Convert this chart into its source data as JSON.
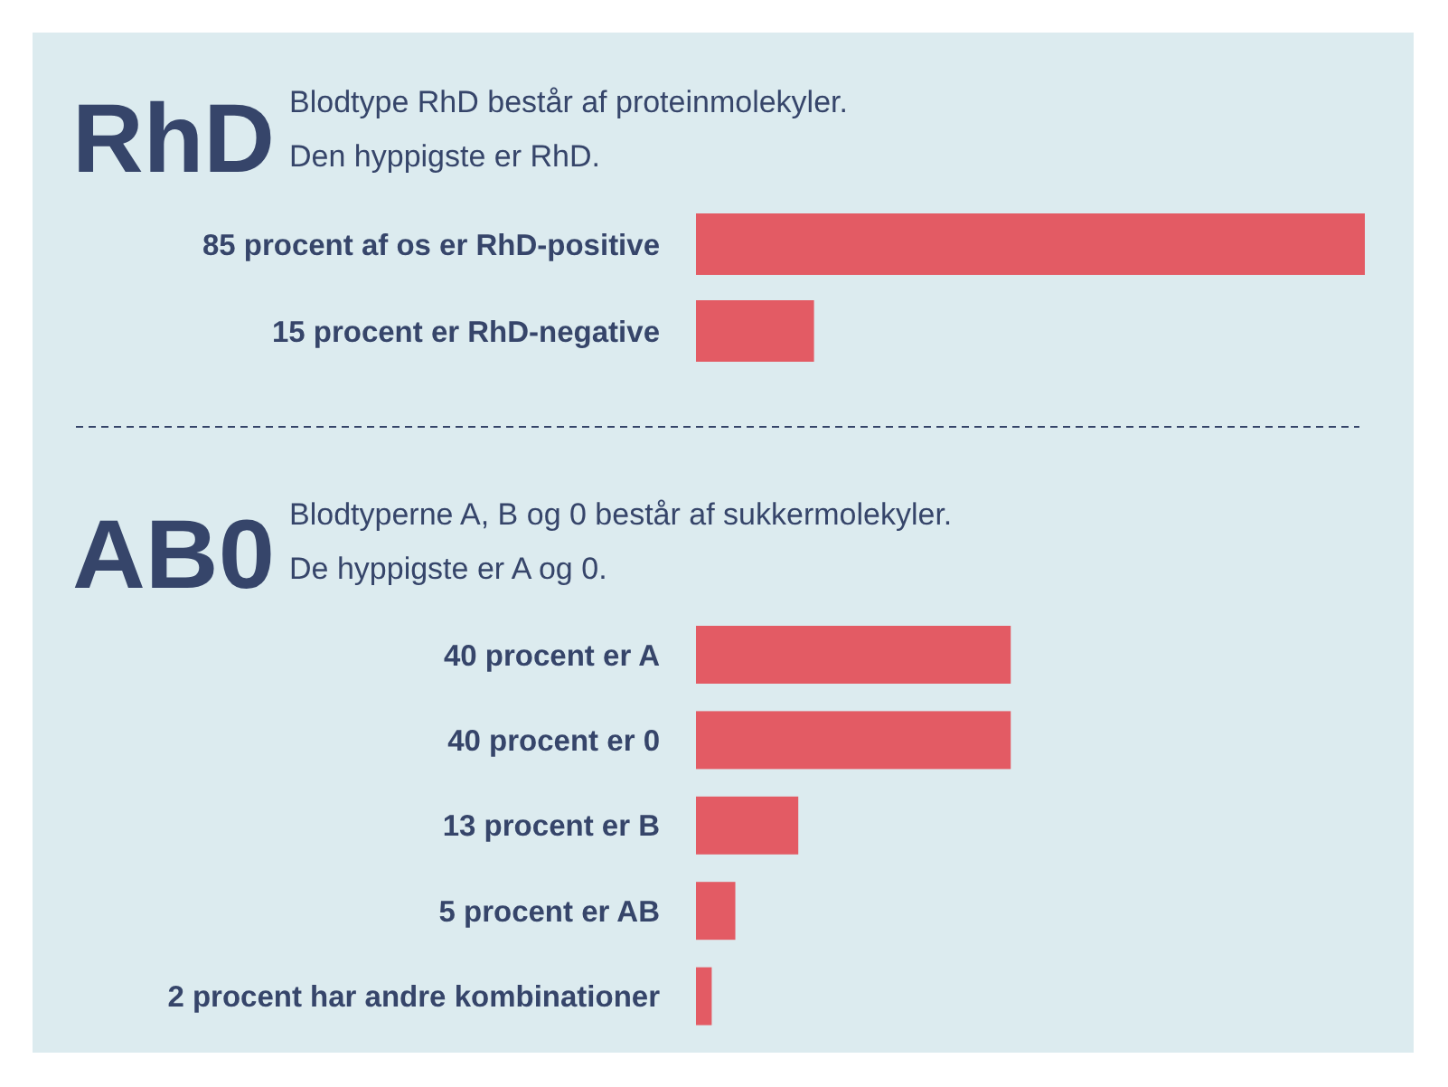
{
  "chart_data": [
    {
      "type": "bar",
      "orientation": "horizontal",
      "title": "RhD",
      "subtitle": "Blodtype RhD består af proteinmolekyler.\nDen hyppigste er RhD.",
      "categories": [
        null,
        null
      ],
      "values": [
        85,
        15
      ],
      "value_labels": [
        "85 procent af os er RhD-positive",
        "15 procent er RhD-negative"
      ],
      "color": "#e35b64"
    },
    {
      "type": "bar",
      "orientation": "horizontal",
      "title": "AB0",
      "subtitle": "Blodtyperne A, B og 0 består af sukkermolekyler.\nDe hyppigste er A og 0.",
      "categories": [
        null,
        null,
        null,
        null,
        null
      ],
      "values": [
        40,
        40,
        13,
        5,
        2
      ],
      "value_labels": [
        "40 procent er A",
        "40 procent er 0",
        "13 procent er B",
        "5 procent er AB",
        "2 procent har andre kombinationer"
      ],
      "color": "#e35b64"
    }
  ]
}
